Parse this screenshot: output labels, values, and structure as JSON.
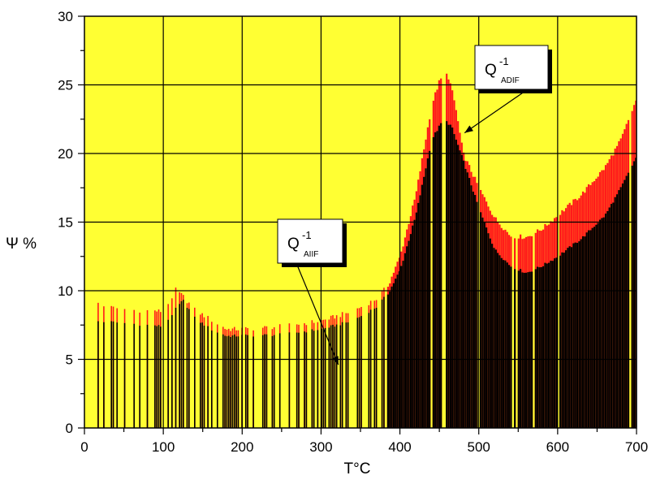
{
  "chart_data": {
    "type": "bar",
    "title": "",
    "xlabel": "T°C",
    "ylabel": "Ψ %",
    "xlim": [
      0,
      700
    ],
    "ylim": [
      0,
      30
    ],
    "x_ticks": [
      0,
      100,
      200,
      300,
      400,
      500,
      600,
      700
    ],
    "y_ticks": [
      0,
      5,
      10,
      15,
      20,
      25,
      30
    ],
    "grid": true,
    "colors": {
      "background": "#FFFF33",
      "bar_total": "#FF1A1A",
      "bar_inner": "#000000",
      "grid": "#000000"
    },
    "series": [
      {
        "name": "Q-1 ADIF",
        "envelope": [
          [
            15,
            9.2
          ],
          [
            30,
            8.8
          ],
          [
            60,
            8.6
          ],
          [
            100,
            8.5
          ],
          [
            110,
            9.4
          ],
          [
            115,
            10.1
          ],
          [
            125,
            9.6
          ],
          [
            140,
            8.6
          ],
          [
            160,
            7.9
          ],
          [
            180,
            7.2
          ],
          [
            200,
            7.2
          ],
          [
            250,
            7.4
          ],
          [
            300,
            7.8
          ],
          [
            340,
            8.5
          ],
          [
            370,
            9.4
          ],
          [
            385,
            10.4
          ],
          [
            400,
            12.5
          ],
          [
            420,
            17.0
          ],
          [
            440,
            23.5
          ],
          [
            450,
            25.3
          ],
          [
            458,
            25.8
          ],
          [
            462,
            25.5
          ],
          [
            470,
            23.5
          ],
          [
            480,
            20.0
          ],
          [
            500,
            17.5
          ],
          [
            520,
            15.3
          ],
          [
            540,
            14.0
          ],
          [
            560,
            13.9
          ],
          [
            580,
            14.5
          ],
          [
            600,
            15.5
          ],
          [
            630,
            17.0
          ],
          [
            660,
            19.0
          ],
          [
            680,
            21.0
          ],
          [
            700,
            24.0
          ]
        ]
      },
      {
        "name": "Q-1 AIIF",
        "envelope": [
          [
            15,
            7.8
          ],
          [
            60,
            7.6
          ],
          [
            100,
            7.4
          ],
          [
            115,
            8.6
          ],
          [
            125,
            9.3
          ],
          [
            140,
            8.0
          ],
          [
            160,
            7.2
          ],
          [
            180,
            6.7
          ],
          [
            250,
            6.8
          ],
          [
            300,
            7.2
          ],
          [
            340,
            7.8
          ],
          [
            370,
            8.8
          ],
          [
            385,
            9.8
          ],
          [
            400,
            11.5
          ],
          [
            420,
            15.5
          ],
          [
            440,
            21.0
          ],
          [
            455,
            22.5
          ],
          [
            465,
            22.0
          ],
          [
            480,
            19.5
          ],
          [
            500,
            16.0
          ],
          [
            520,
            13.0
          ],
          [
            540,
            11.8
          ],
          [
            560,
            11.3
          ],
          [
            580,
            11.8
          ],
          [
            600,
            12.5
          ],
          [
            630,
            13.8
          ],
          [
            660,
            15.5
          ],
          [
            680,
            17.5
          ],
          [
            700,
            19.8
          ]
        ]
      }
    ],
    "annotations": [
      {
        "text": "Q",
        "superscript": "-1",
        "subscript": "ADIF",
        "arrow_to": {
          "x": 482,
          "y": 21.5
        }
      },
      {
        "text": "Q",
        "superscript": "-1",
        "subscript": "AIIF",
        "arrow_to": {
          "x": 322,
          "y": 4.6
        }
      }
    ]
  }
}
